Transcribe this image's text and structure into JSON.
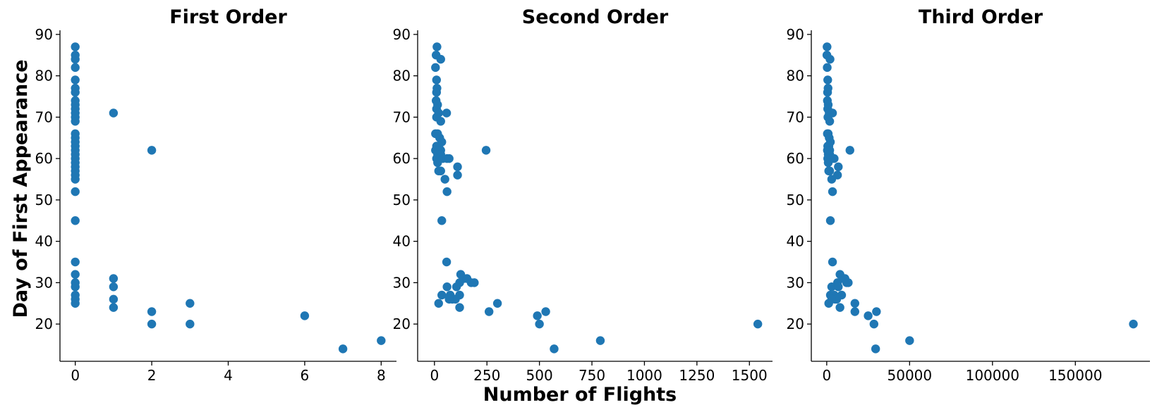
{
  "chart_data": [
    {
      "type": "scatter",
      "title": "First Order",
      "color": "#1f77b4",
      "xticks": [
        "0",
        "2",
        "4",
        "6",
        "8"
      ],
      "yticks": [
        "20",
        "30",
        "40",
        "50",
        "60",
        "70",
        "80",
        "90"
      ],
      "xlim": [
        -0.4,
        8.4
      ],
      "ylim": [
        11,
        91
      ],
      "grid": false,
      "points": [
        [
          0,
          87
        ],
        [
          0,
          85
        ],
        [
          0,
          84
        ],
        [
          0,
          82
        ],
        [
          0,
          79
        ],
        [
          0,
          77
        ],
        [
          0,
          76
        ],
        [
          0,
          74
        ],
        [
          0,
          73
        ],
        [
          0,
          72
        ],
        [
          0,
          71
        ],
        [
          0,
          70
        ],
        [
          0,
          69
        ],
        [
          0,
          66
        ],
        [
          0,
          65
        ],
        [
          0,
          64
        ],
        [
          0,
          63
        ],
        [
          0,
          62
        ],
        [
          0,
          61
        ],
        [
          0,
          60
        ],
        [
          0,
          59
        ],
        [
          0,
          58
        ],
        [
          0,
          57
        ],
        [
          0,
          56
        ],
        [
          0,
          55
        ],
        [
          0,
          52
        ],
        [
          0,
          45
        ],
        [
          0,
          35
        ],
        [
          0,
          32
        ],
        [
          0,
          30
        ],
        [
          0,
          29
        ],
        [
          0,
          27
        ],
        [
          0,
          26
        ],
        [
          0,
          25
        ],
        [
          1,
          71
        ],
        [
          1,
          31
        ],
        [
          1,
          29
        ],
        [
          1,
          26
        ],
        [
          1,
          24
        ],
        [
          2,
          62
        ],
        [
          2,
          23
        ],
        [
          2,
          20
        ],
        [
          3,
          25
        ],
        [
          3,
          20
        ],
        [
          6,
          22
        ],
        [
          7,
          14
        ],
        [
          8,
          16
        ]
      ]
    },
    {
      "type": "scatter",
      "title": "Second Order",
      "color": "#1f77b4",
      "xticks": [
        "0",
        "250",
        "500",
        "750",
        "1000",
        "1250",
        "1500"
      ],
      "yticks": [
        "20",
        "30",
        "40",
        "50",
        "60",
        "70",
        "80",
        "90"
      ],
      "xlim": [
        -80,
        1610
      ],
      "ylim": [
        11,
        91
      ],
      "grid": false,
      "points": [
        [
          12,
          87
        ],
        [
          8,
          85
        ],
        [
          30,
          84
        ],
        [
          5,
          82
        ],
        [
          10,
          79
        ],
        [
          12,
          77
        ],
        [
          10,
          76
        ],
        [
          8,
          74
        ],
        [
          15,
          73
        ],
        [
          10,
          72
        ],
        [
          20,
          71
        ],
        [
          58,
          71
        ],
        [
          10,
          70
        ],
        [
          30,
          69
        ],
        [
          5,
          66
        ],
        [
          15,
          66
        ],
        [
          25,
          65
        ],
        [
          35,
          64
        ],
        [
          10,
          63
        ],
        [
          20,
          63
        ],
        [
          5,
          62
        ],
        [
          30,
          62
        ],
        [
          246,
          62
        ],
        [
          15,
          61
        ],
        [
          30,
          61
        ],
        [
          10,
          60
        ],
        [
          40,
          60
        ],
        [
          60,
          60
        ],
        [
          70,
          60
        ],
        [
          15,
          59
        ],
        [
          110,
          58
        ],
        [
          20,
          57
        ],
        [
          30,
          57
        ],
        [
          110,
          56
        ],
        [
          50,
          55
        ],
        [
          60,
          52
        ],
        [
          35,
          45
        ],
        [
          58,
          35
        ],
        [
          125,
          32
        ],
        [
          140,
          31
        ],
        [
          155,
          31
        ],
        [
          120,
          30
        ],
        [
          175,
          30
        ],
        [
          190,
          30
        ],
        [
          60,
          29
        ],
        [
          105,
          29
        ],
        [
          20,
          25
        ],
        [
          35,
          27
        ],
        [
          75,
          27
        ],
        [
          85,
          26
        ],
        [
          120,
          27
        ],
        [
          100,
          26
        ],
        [
          70,
          26
        ],
        [
          120,
          24
        ],
        [
          300,
          25
        ],
        [
          260,
          23
        ],
        [
          530,
          23
        ],
        [
          490,
          22
        ],
        [
          500,
          20
        ],
        [
          570,
          14
        ],
        [
          790,
          16
        ],
        [
          1540,
          20
        ]
      ]
    },
    {
      "type": "scatter",
      "title": "Third Order",
      "color": "#1f77b4",
      "xticks": [
        "0",
        "50000",
        "100000",
        "150000"
      ],
      "yticks": [
        "20",
        "30",
        "40",
        "50",
        "60",
        "70",
        "80",
        "90"
      ],
      "xlim": [
        -9300,
        195000
      ],
      "ylim": [
        11,
        91
      ],
      "grid": false,
      "points": [
        [
          200,
          87
        ],
        [
          100,
          85
        ],
        [
          2000,
          84
        ],
        [
          300,
          82
        ],
        [
          600,
          79
        ],
        [
          800,
          77
        ],
        [
          500,
          76
        ],
        [
          400,
          74
        ],
        [
          900,
          73
        ],
        [
          600,
          72
        ],
        [
          1500,
          71
        ],
        [
          3500,
          71
        ],
        [
          700,
          70
        ],
        [
          1800,
          69
        ],
        [
          400,
          66
        ],
        [
          900,
          66
        ],
        [
          1500,
          65
        ],
        [
          2200,
          64
        ],
        [
          600,
          63
        ],
        [
          1300,
          63
        ],
        [
          400,
          62
        ],
        [
          1800,
          62
        ],
        [
          14000,
          62
        ],
        [
          900,
          61
        ],
        [
          1800,
          61
        ],
        [
          600,
          60
        ],
        [
          2500,
          60
        ],
        [
          3500,
          60
        ],
        [
          4500,
          60
        ],
        [
          900,
          59
        ],
        [
          7000,
          58
        ],
        [
          1200,
          57
        ],
        [
          1800,
          57
        ],
        [
          6500,
          56
        ],
        [
          3000,
          55
        ],
        [
          3500,
          52
        ],
        [
          2200,
          45
        ],
        [
          3500,
          35
        ],
        [
          8000,
          32
        ],
        [
          10000,
          31
        ],
        [
          11000,
          31
        ],
        [
          6500,
          30
        ],
        [
          12000,
          30
        ],
        [
          13000,
          30
        ],
        [
          3000,
          29
        ],
        [
          7000,
          29
        ],
        [
          1200,
          25
        ],
        [
          2200,
          27
        ],
        [
          4500,
          27
        ],
        [
          5000,
          26
        ],
        [
          9000,
          27
        ],
        [
          6000,
          26
        ],
        [
          3000,
          26
        ],
        [
          8000,
          24
        ],
        [
          17000,
          25
        ],
        [
          17000,
          23
        ],
        [
          30000,
          23
        ],
        [
          25000,
          22
        ],
        [
          28500,
          20
        ],
        [
          29500,
          14
        ],
        [
          50000,
          16
        ],
        [
          185000,
          20
        ]
      ]
    }
  ],
  "ylabel": "Day of First Appearance",
  "xlabel": "Number of Flights"
}
